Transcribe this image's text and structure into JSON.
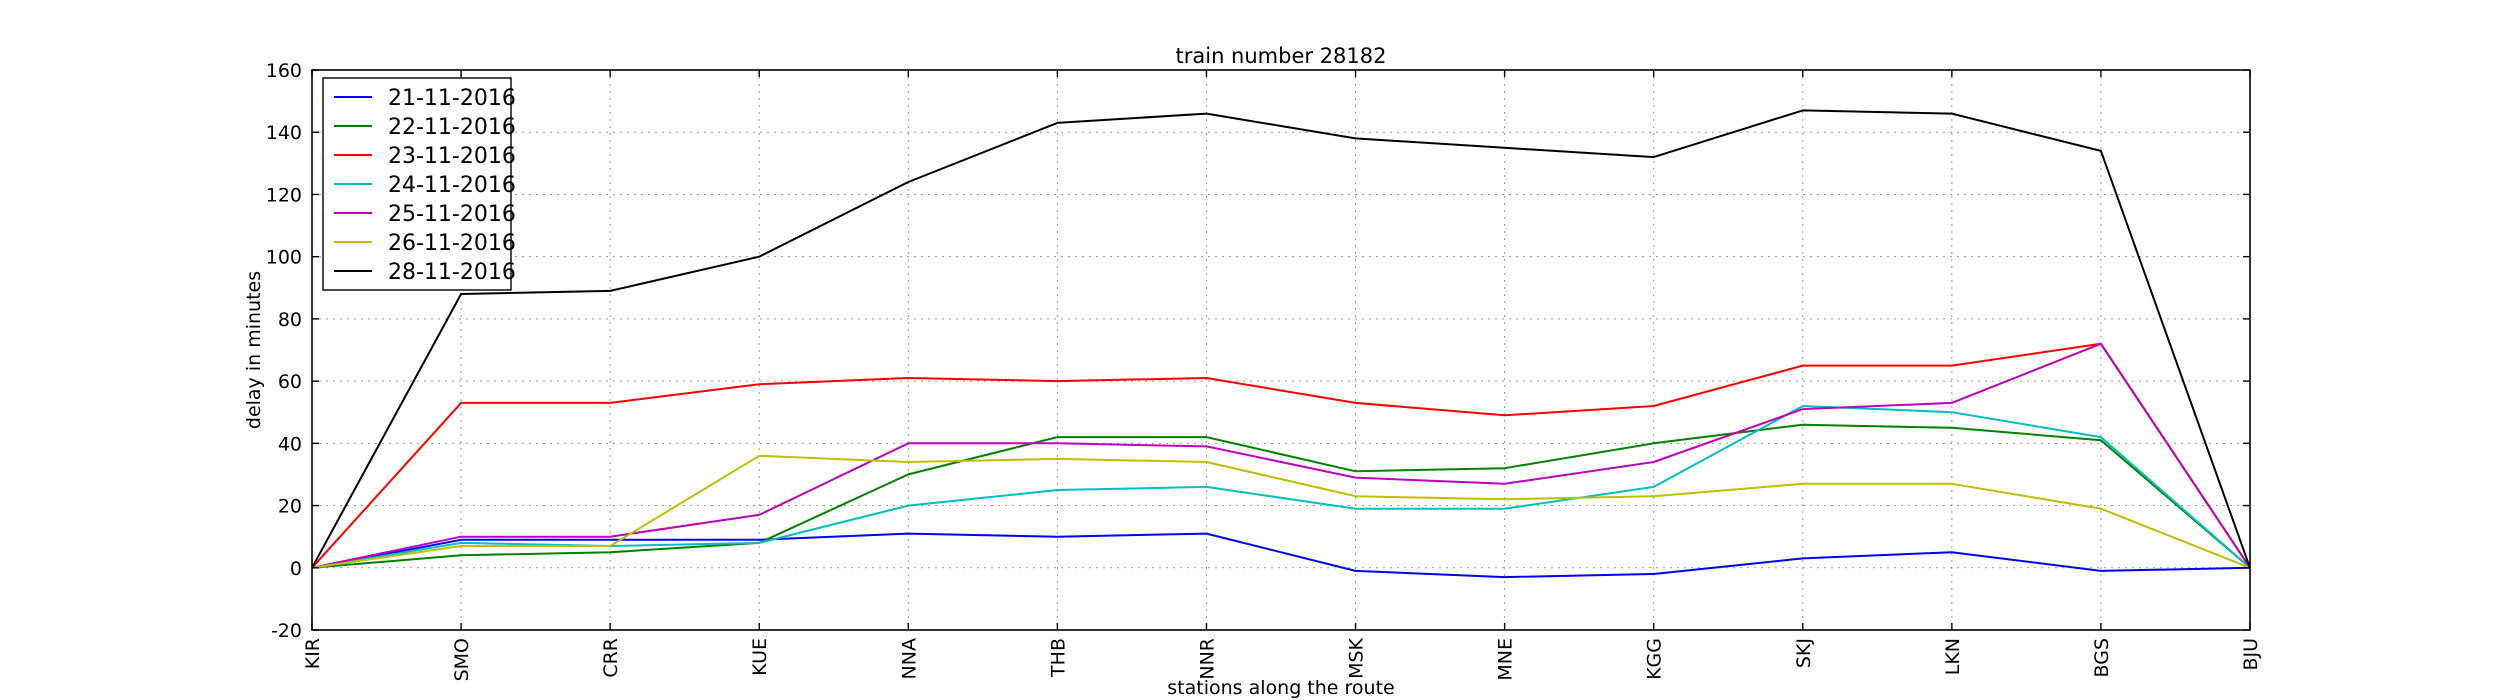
{
  "chart_data": {
    "type": "line",
    "title": "train number 28182",
    "xlabel": "stations along the route",
    "ylabel": "delay in minutes",
    "categories": [
      "KIR",
      "SMO",
      "CRR",
      "KUE",
      "NNA",
      "THB",
      "NNR",
      "MSK",
      "MNE",
      "KGG",
      "SKJ",
      "LKN",
      "BGS",
      "BJU"
    ],
    "ylim": [
      -20,
      160
    ],
    "yticks": [
      -20,
      0,
      20,
      40,
      60,
      80,
      100,
      120,
      140,
      160
    ],
    "grid": true,
    "legend_position": "top-left",
    "series": [
      {
        "name": "21-11-2016",
        "color": "#0000ff",
        "values": [
          0,
          9,
          9,
          9,
          11,
          10,
          11,
          -1,
          -3,
          -2,
          3,
          5,
          -1,
          0
        ]
      },
      {
        "name": "22-11-2016",
        "color": "#008000",
        "values": [
          0,
          4,
          5,
          8,
          30,
          42,
          42,
          31,
          32,
          40,
          46,
          45,
          41,
          0
        ]
      },
      {
        "name": "23-11-2016",
        "color": "#ff0000",
        "values": [
          0,
          53,
          53,
          59,
          61,
          60,
          61,
          53,
          49,
          52,
          65,
          65,
          72,
          0
        ]
      },
      {
        "name": "24-11-2016",
        "color": "#00bfbf",
        "values": [
          0,
          8,
          7,
          8,
          20,
          25,
          26,
          19,
          19,
          26,
          52,
          50,
          42,
          0
        ]
      },
      {
        "name": "25-11-2016",
        "color": "#bf00bf",
        "values": [
          0,
          10,
          10,
          17,
          40,
          40,
          39,
          29,
          27,
          34,
          51,
          53,
          72,
          0
        ]
      },
      {
        "name": "26-11-2016",
        "color": "#bfbf00",
        "values": [
          0,
          7,
          7,
          36,
          34,
          35,
          34,
          23,
          22,
          23,
          27,
          27,
          19,
          0
        ]
      },
      {
        "name": "28-11-2016",
        "color": "#000000",
        "values": [
          0,
          88,
          89,
          100,
          124,
          143,
          146,
          138,
          135,
          132,
          147,
          146,
          134,
          0
        ]
      }
    ]
  }
}
